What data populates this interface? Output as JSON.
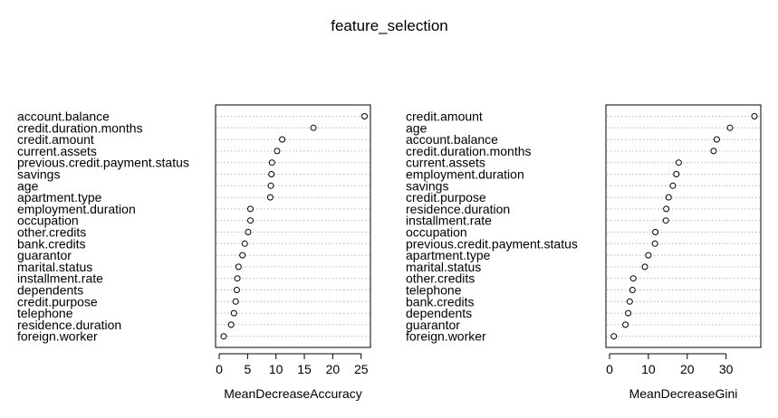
{
  "title": "feature_selection",
  "chart_data": [
    {
      "type": "scatter",
      "style": "dotchart",
      "xlabel": "MeanDecreaseAccuracy",
      "xlim": [
        0,
        26
      ],
      "xticks": [
        0,
        5,
        10,
        15,
        20,
        25
      ],
      "grid": "dotted horizontal guide lines",
      "categories": [
        "account.balance",
        "credit.duration.months",
        "credit.amount",
        "current.assets",
        "previous.credit.payment.status",
        "savings",
        "age",
        "apartment.type",
        "employment.duration",
        "occupation",
        "other.credits",
        "bank.credits",
        "guarantor",
        "marital.status",
        "installment.rate",
        "dependents",
        "credit.purpose",
        "telephone",
        "residence.duration",
        "foreign.worker"
      ],
      "values": [
        25.6,
        16.6,
        11.1,
        10.2,
        9.3,
        9.2,
        9.1,
        9.0,
        5.5,
        5.5,
        5.1,
        4.5,
        4.1,
        3.4,
        3.2,
        3.1,
        2.9,
        2.6,
        2.1,
        0.8
      ]
    },
    {
      "type": "scatter",
      "style": "dotchart",
      "xlabel": "MeanDecreaseGini",
      "xlim": [
        0,
        38
      ],
      "xticks": [
        0,
        10,
        20,
        30
      ],
      "grid": "dotted horizontal guide lines",
      "categories": [
        "credit.amount",
        "age",
        "account.balance",
        "credit.duration.months",
        "current.assets",
        "employment.duration",
        "savings",
        "credit.purpose",
        "residence.duration",
        "installment.rate",
        "occupation",
        "previous.credit.payment.status",
        "apartment.type",
        "marital.status",
        "other.credits",
        "telephone",
        "bank.credits",
        "dependents",
        "guarantor",
        "foreign.worker"
      ],
      "values": [
        37.3,
        31.0,
        27.6,
        26.8,
        17.8,
        17.2,
        16.3,
        15.2,
        14.6,
        14.5,
        11.8,
        11.7,
        10.0,
        9.1,
        6.1,
        5.9,
        5.2,
        4.8,
        4.1,
        1.1
      ]
    }
  ]
}
